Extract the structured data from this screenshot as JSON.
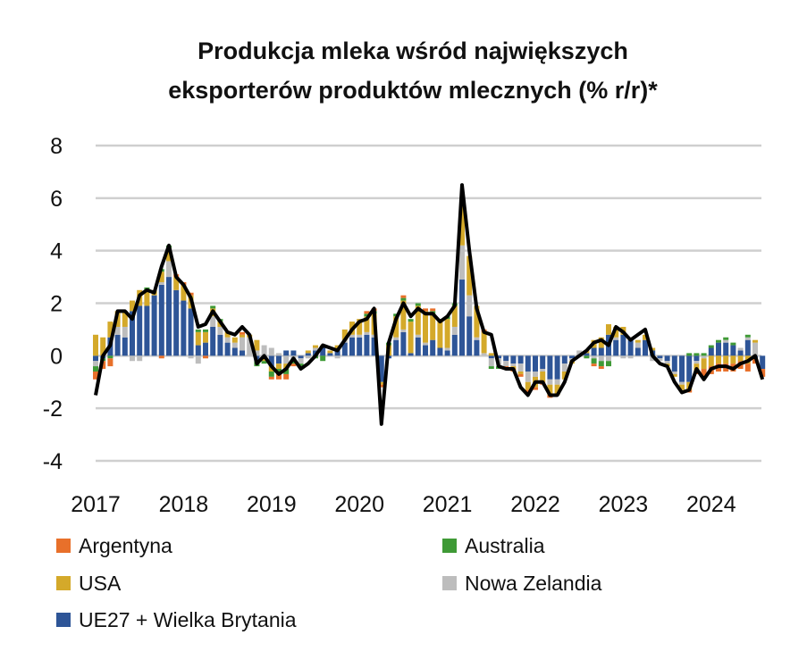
{
  "chart_data": {
    "type": "bar",
    "stacked": true,
    "title_lines": [
      "Produkcja mleka wśród największych",
      "eksporterów produktów mlecznych (% r/r)*"
    ],
    "xlabel": "",
    "ylabel": "",
    "ylim": [
      -4,
      8
    ],
    "yticks": [
      "8",
      "6",
      "4",
      "2",
      "0",
      "-2",
      "-4"
    ],
    "ytick_values": [
      8,
      6,
      4,
      2,
      0,
      -2,
      -4
    ],
    "xtick_labels": [
      "2017",
      "2018",
      "2019",
      "2020",
      "2021",
      "2022",
      "2023",
      "2024"
    ],
    "x_start": "2017-01",
    "frequency": "monthly",
    "grid": true,
    "legend_position": "bottom",
    "series": [
      {
        "name": "UE27 + Wielka Brytania",
        "color": "#2e5597",
        "values": [
          -0.2,
          -0.1,
          0.7,
          0.8,
          0.7,
          1.7,
          1.9,
          1.9,
          2.3,
          2.7,
          3.0,
          2.5,
          2.1,
          1.8,
          0.4,
          0.5,
          1.1,
          0.8,
          0.5,
          0.3,
          0.2,
          0.0,
          -0.2,
          -0.1,
          -0.4,
          -0.3,
          0.2,
          0.2,
          -0.1,
          0.1,
          0.2,
          0.3,
          0.1,
          0.2,
          0.5,
          0.7,
          0.7,
          0.8,
          0.7,
          -1.0,
          -0.1,
          0.6,
          0.9,
          0.1,
          0.7,
          0.4,
          0.6,
          0.3,
          0.2,
          0.8,
          2.9,
          1.5,
          0.6,
          0.0,
          -0.1,
          -0.1,
          -0.2,
          -0.3,
          -0.3,
          -0.6,
          -0.6,
          -0.5,
          -0.9,
          -0.9,
          -0.3,
          -0.1,
          0.0,
          0.1,
          0.3,
          0.3,
          0.8,
          0.6,
          0.8,
          0.6,
          0.3,
          0.6,
          0.2,
          -0.1,
          -0.2,
          -0.6,
          -1.0,
          -1.0,
          -0.2,
          0.0,
          0.3,
          0.5,
          0.5,
          0.4,
          0.2,
          0.6,
          -0.1,
          -0.5
        ]
      },
      {
        "name": "Nowa Zelandia",
        "color": "#bdbdbd",
        "values": [
          -0.2,
          0.0,
          0.0,
          0.3,
          0.4,
          -0.2,
          -0.2,
          0.0,
          0.0,
          0.1,
          0.6,
          0.0,
          0.0,
          -0.1,
          -0.3,
          0.0,
          0.4,
          0.3,
          0.2,
          0.2,
          0.5,
          0.7,
          0.2,
          0.4,
          0.3,
          0.1,
          -0.3,
          -0.2,
          -0.2,
          -0.1,
          0.1,
          0.0,
          0.0,
          -0.1,
          0.1,
          0.1,
          0.1,
          0.1,
          0.1,
          0.0,
          0.0,
          0.1,
          0.1,
          0.0,
          0.1,
          0.1,
          0.0,
          0.0,
          0.1,
          0.3,
          1.3,
          0.8,
          0.1,
          0.1,
          -0.3,
          -0.3,
          -0.2,
          -0.1,
          -0.3,
          -0.4,
          -0.2,
          -0.1,
          -0.2,
          -0.2,
          -0.3,
          -0.1,
          0.2,
          0.0,
          -0.1,
          -0.2,
          -0.2,
          0.1,
          -0.1,
          -0.1,
          0.2,
          0.0,
          -0.2,
          -0.1,
          -0.1,
          -0.1,
          -0.1,
          0.0,
          -0.1,
          -0.1,
          0.0,
          0.0,
          0.1,
          0.0,
          0.1,
          0.1,
          0.5,
          0.0
        ]
      },
      {
        "name": "USA",
        "color": "#d4a92a",
        "values": [
          0.8,
          0.7,
          0.6,
          0.6,
          0.6,
          0.4,
          0.6,
          0.6,
          0.2,
          0.4,
          0.5,
          0.5,
          0.6,
          0.5,
          0.5,
          0.4,
          0.3,
          0.2,
          0.2,
          0.2,
          0.1,
          0.1,
          0.4,
          -0.1,
          -0.2,
          -0.2,
          -0.2,
          0.0,
          0.0,
          0.1,
          0.1,
          0.1,
          0.1,
          0.2,
          0.4,
          0.5,
          0.6,
          0.6,
          0.8,
          -0.1,
          0.4,
          0.8,
          1.1,
          1.2,
          1.1,
          1.2,
          1.0,
          1.0,
          1.1,
          0.8,
          1.6,
          1.5,
          1.2,
          0.8,
          0.1,
          0.0,
          0.0,
          -0.1,
          -0.1,
          -0.3,
          -0.4,
          -0.4,
          -0.4,
          -0.4,
          -0.3,
          -0.1,
          0.0,
          0.1,
          0.3,
          0.4,
          0.4,
          0.4,
          0.3,
          0.1,
          0.1,
          0.2,
          0.1,
          0.0,
          -0.1,
          -0.1,
          -0.2,
          -0.3,
          -0.3,
          -0.4,
          -0.4,
          -0.3,
          -0.3,
          -0.3,
          -0.2,
          -0.3,
          0.1,
          0.0
        ]
      },
      {
        "name": "Australia",
        "color": "#3f9a36",
        "values": [
          -0.2,
          -0.1,
          -0.1,
          0.0,
          0.0,
          0.0,
          0.0,
          0.1,
          0.0,
          0.1,
          0.1,
          0.0,
          0.0,
          0.0,
          0.1,
          0.1,
          0.1,
          0.1,
          0.0,
          0.0,
          0.0,
          0.0,
          -0.2,
          -0.1,
          -0.2,
          -0.2,
          -0.2,
          -0.1,
          -0.1,
          0.0,
          -0.1,
          -0.2,
          0.0,
          0.0,
          0.0,
          0.0,
          0.0,
          0.1,
          0.1,
          0.0,
          0.1,
          0.1,
          0.1,
          0.1,
          0.1,
          0.0,
          0.1,
          0.1,
          0.1,
          0.1,
          0.1,
          0.0,
          0.0,
          0.0,
          -0.1,
          -0.1,
          0.0,
          0.0,
          0.0,
          0.0,
          0.0,
          0.0,
          0.0,
          0.0,
          0.0,
          0.0,
          0.0,
          -0.1,
          -0.2,
          -0.2,
          -0.2,
          0.0,
          0.0,
          0.0,
          0.0,
          0.0,
          0.0,
          0.0,
          0.0,
          0.0,
          0.0,
          0.1,
          0.1,
          0.1,
          0.1,
          0.1,
          0.1,
          0.1,
          0.0,
          0.1,
          0.0,
          0.0
        ]
      },
      {
        "name": "Argentyna",
        "color": "#e8702a",
        "values": [
          -0.3,
          -0.3,
          -0.3,
          0.0,
          0.0,
          0.0,
          0.0,
          0.0,
          0.0,
          -0.1,
          0.0,
          0.1,
          0.1,
          0.1,
          0.0,
          -0.1,
          0.0,
          0.0,
          0.0,
          0.0,
          0.1,
          0.0,
          0.0,
          0.0,
          -0.1,
          -0.2,
          -0.2,
          -0.1,
          0.0,
          0.0,
          0.0,
          0.0,
          0.0,
          0.0,
          0.0,
          0.0,
          0.0,
          0.1,
          0.1,
          -0.1,
          0.0,
          0.0,
          0.1,
          0.0,
          0.0,
          0.1,
          0.1,
          0.0,
          0.0,
          0.0,
          0.0,
          0.0,
          0.0,
          0.1,
          0.0,
          0.0,
          -0.1,
          -0.1,
          -0.1,
          -0.1,
          -0.1,
          -0.1,
          -0.1,
          0.0,
          0.0,
          0.0,
          0.0,
          0.0,
          -0.1,
          -0.1,
          0.0,
          0.0,
          0.0,
          0.0,
          0.0,
          0.0,
          0.0,
          0.0,
          0.0,
          0.0,
          0.0,
          -0.1,
          -0.1,
          -0.3,
          -0.3,
          -0.3,
          -0.3,
          -0.3,
          -0.3,
          -0.3,
          -0.2,
          -0.3
        ]
      }
    ],
    "total_line": {
      "color": "#000000",
      "values": [
        -1.5,
        0.0,
        0.4,
        1.7,
        1.7,
        1.4,
        2.3,
        2.5,
        2.4,
        3.4,
        4.2,
        3.0,
        2.7,
        2.2,
        1.1,
        1.2,
        1.7,
        1.3,
        0.9,
        0.8,
        1.1,
        0.8,
        -0.3,
        0.0,
        -0.4,
        -0.7,
        -0.5,
        -0.1,
        -0.5,
        -0.3,
        0.0,
        0.4,
        0.3,
        0.2,
        0.6,
        1.0,
        1.3,
        1.4,
        1.8,
        -2.6,
        0.5,
        1.4,
        2.0,
        1.5,
        1.8,
        1.6,
        1.6,
        1.3,
        1.5,
        1.9,
        6.5,
        4.0,
        1.8,
        0.9,
        0.8,
        -0.4,
        -0.5,
        -0.5,
        -1.2,
        -1.5,
        -1.0,
        -1.0,
        -1.5,
        -1.5,
        -1.0,
        -0.2,
        0.0,
        0.2,
        0.5,
        0.6,
        0.4,
        1.1,
        0.9,
        0.6,
        0.8,
        1.0,
        0.0,
        -0.3,
        -0.4,
        -1.0,
        -1.4,
        -1.3,
        -0.5,
        -0.9,
        -0.5,
        -0.4,
        -0.4,
        -0.5,
        -0.3,
        -0.2,
        0.0,
        -0.9
      ]
    },
    "legend": [
      {
        "label": "Argentyna",
        "color": "#e8702a"
      },
      {
        "label": "Australia",
        "color": "#3f9a36"
      },
      {
        "label": "USA",
        "color": "#d4a92a"
      },
      {
        "label": "Nowa Zelandia",
        "color": "#bdbdbd"
      },
      {
        "label": "UE27 + Wielka Brytania",
        "color": "#2e5597"
      }
    ]
  }
}
